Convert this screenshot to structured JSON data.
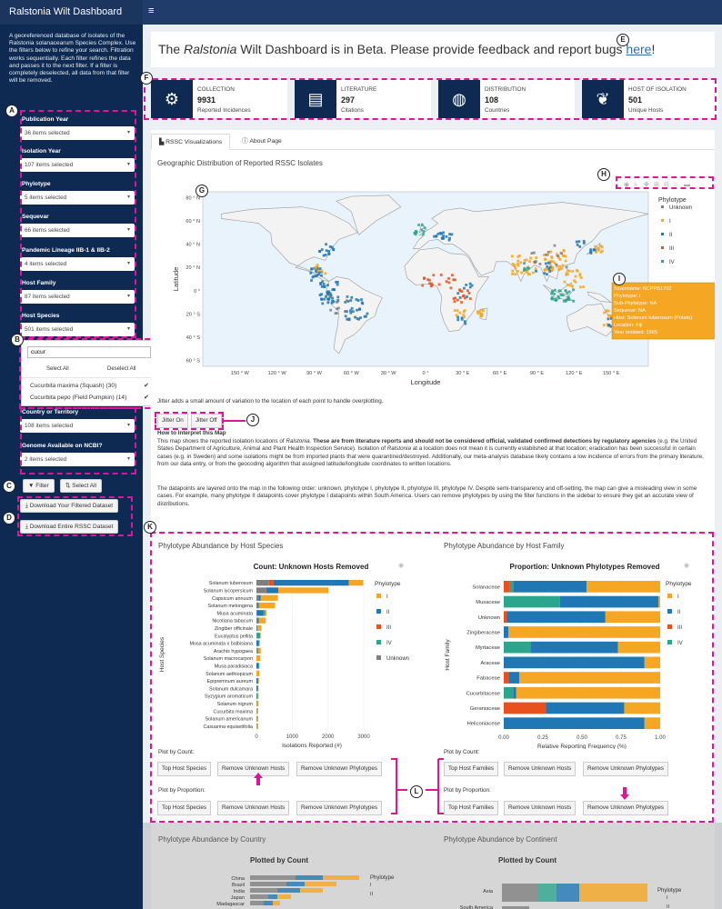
{
  "app": {
    "title": "Ralstonia Wilt Dashboard",
    "menu_glyph": "≡"
  },
  "sidebar": {
    "description": "A georeferenced database of isolates of the Ralstonia solanacearum Species Complex. Use the filters below to refine your search. Filtration works sequentially. Each filter refines the data and passes it to the next filter. If a filter is completely deselected, all data from that filter will be removed.",
    "filters": [
      {
        "label": "Publication Year",
        "value": "36 items selected"
      },
      {
        "label": "Isolation Year",
        "value": "107 items selected"
      },
      {
        "label": "Phylotype",
        "value": "5 items selected"
      },
      {
        "label": "Sequevar",
        "value": "66 items selected"
      },
      {
        "label": "Pandemic Lineage IIB-1 & IIB-2",
        "value": "4 items selected"
      },
      {
        "label": "Host Family",
        "value": "87 items selected"
      },
      {
        "label": "Host Species",
        "value": "501 items selected"
      },
      {
        "label": "Country or Territory",
        "value": "108 items selected"
      },
      {
        "label": "Genome Available on NCBI?",
        "value": "2 items selected"
      }
    ],
    "dropdown": {
      "search_value": "cucur",
      "select_all": "Select All",
      "deselect_all": "Deselect All",
      "options": [
        {
          "label": "Cucurbita maxima (Squash) (30)",
          "checked": "✔"
        },
        {
          "label": "Cucurbita pepo (Field Pumpkin) (14)",
          "checked": "✔"
        }
      ]
    },
    "filter_button": "Filter",
    "select_all_button": "Select All",
    "download_filtered": "Download Your Filtered Dataset",
    "download_entire": "Download Entire RSSC Dataset"
  },
  "annotations": {
    "A": "A",
    "B": "B",
    "C": "C",
    "D": "D",
    "E": "E",
    "F": "F",
    "G": "G",
    "H": "H",
    "I": "I",
    "J": "J",
    "K": "K",
    "L": "L"
  },
  "beta": {
    "prefix": "The ",
    "italic": "Ralstonia",
    "middle": " Wilt Dashboard is in Beta. Please provide feedback and report bugs ",
    "link": "here",
    "suffix": "!"
  },
  "value_boxes": [
    {
      "label": "COLLECTION",
      "value": "9931",
      "sub": "Reported Incidences",
      "icon": "gears-icon",
      "glyph": "⚙"
    },
    {
      "label": "LITERATURE",
      "value": "297",
      "sub": "Citations",
      "icon": "newspaper-icon",
      "glyph": "▤"
    },
    {
      "label": "DISTRIBUTION",
      "value": "108",
      "sub": "Countries",
      "icon": "globe-icon",
      "glyph": "◍"
    },
    {
      "label": "HOST OF ISOLATION",
      "value": "501",
      "sub": "Unique Hosts",
      "icon": "seedling-icon",
      "glyph": "❦"
    }
  ],
  "tabs": [
    {
      "label": "RSSC Visualizations",
      "icon": "chart-icon"
    },
    {
      "label": "About Page",
      "icon": "info-icon"
    }
  ],
  "map": {
    "title": "Geographic Distribution of Reported RSSC Isolates",
    "xlabel": "Longitude",
    "ylabel": "Latitude",
    "lat_ticks": [
      "80 ° N",
      "60 ° N",
      "40 ° N",
      "20 ° N",
      "0 °",
      "20 ° S",
      "40 ° S",
      "60 ° S"
    ],
    "lon_ticks": [
      "150 ° W",
      "120 ° W",
      "90 ° W",
      "60 ° W",
      "30 ° W",
      "0 °",
      "30 ° E",
      "60 ° E",
      "90 ° E",
      "120 ° E",
      "150 ° E"
    ],
    "legend_title": "Phylotype",
    "legend": [
      {
        "name": "Unknown",
        "color": "#7f7f7f"
      },
      {
        "name": "I",
        "color": "#f5a623"
      },
      {
        "name": "II",
        "color": "#1f77b4"
      },
      {
        "name": "III",
        "color": "#e8501e"
      },
      {
        "name": "IV",
        "color": "#2ca58d"
      }
    ],
    "tooltip": [
      "Strainname: NCPPB1702",
      "Phylotype: I",
      "Sub-Phylotype: NA",
      "Sequevar: NA",
      "Host: Solanum tuberosum (Potato)",
      "Location: Fiji",
      "Year Isolated: 1965"
    ],
    "toolbar": [
      "camera-icon",
      "zoom-icon",
      "pan-icon",
      "zoom-in-icon",
      "zoom-out-icon",
      "autoscale-icon",
      "plotly-logo"
    ]
  },
  "jitter": {
    "note": "Jitter adds a small amount of variation to the location of each point to handle overplotting.",
    "on": "Jitter On",
    "off": "Jitter Off"
  },
  "interpret": {
    "heading": "How to Interpret this Map",
    "p1_a": "This map shows the reported isolation locations of ",
    "p1_i": "Ralstonia",
    "p1_b": ". ",
    "p1_bold": "These are from literature reports and should not be considered official, validated confirmed detections by regulatory agencies",
    "p1_c": " (e.g. the United States Department of Agriculture, Animal and Plant Health Inspection Service). Isolation of ",
    "p1_i2": "Ralstonia",
    "p1_d": " at a location does not mean it is currently established at that location; eradication has been successful in certain cases (e.g. in Sweden) and some isolations might be from imported plants that were quarantined/destroyed. Additionally, our meta-analysis database likely contains a low incidence of errors from the primary literature, from our data entry, or from the geocoding algorithm that assigned latitude/longitude coordinates to written locations.",
    "p2": "The datapoints are layered onto the map in the following order: unknown, phylotype I, phylotype II, phylotype III, phylotype IV. Despite semi-transparency and off-setting, the map can give a misleading view in some cases. For example, many phylotype II datapoints cover phylotype I datapoints within South America. Users can remove phylotypes by using the filter functions in the sidebar to ensure they get an accurate view of distributions."
  },
  "host_species": {
    "section_title": "Phylotype Abundance by Host Species",
    "chart_title": "Count: Unknown Hosts Removed",
    "xlabel": "Isolations Reported (#)",
    "ylabel": "Host Species",
    "x_ticks": [
      "0",
      "1000",
      "2000",
      "3000"
    ],
    "plot_by_count": "Plot by Count:",
    "plot_by_proportion": "Plot by Proportion:",
    "buttons": [
      "Top Host Species",
      "Remove Unknown Hosts",
      "Remove Unknown Phylotypes"
    ]
  },
  "host_family": {
    "section_title": "Phylotype Abundance by Host Family",
    "chart_title": "Proportion: Unknown Phylotypes Removed",
    "xlabel": "Relative Reporting Frequency (%)",
    "ylabel": "Host Family",
    "x_ticks": [
      "0.00",
      "0.25",
      "0.50",
      "0.75",
      "1.00"
    ],
    "plot_by_count": "Plot by Count:",
    "plot_by_proportion": "Plot by Proportion:",
    "buttons": [
      "Top Host Families",
      "Remove Unknown Hosts",
      "Remove Unknown Phylotypes"
    ]
  },
  "bottom": {
    "country_title": "Phylotype Abundance by Country",
    "country_chart": "Plotted by Count",
    "country_labels": [
      "China",
      "Brazil",
      "India",
      "Japan",
      "Madagascar"
    ],
    "continent_title": "Phylotype Abundance by Continent",
    "continent_chart": "Plotted by Count",
    "continent_labels": [
      "Asia",
      "South America"
    ]
  },
  "chart_data": [
    {
      "type": "bar",
      "orientation": "horizontal",
      "title": "Count: Unknown Hosts Removed",
      "xlabel": "Isolations Reported (#)",
      "ylabel": "Host Species",
      "xlim": [
        0,
        3100
      ],
      "legend_title": "Phylotype",
      "categories": [
        "Solanum tuberosum",
        "Solanum lycopersicum",
        "Capsicum annuum",
        "Solanum melongena",
        "Musa acuminata",
        "Nicotiana tabacum",
        "Zingiber officinale",
        "Eucalyptus pellita",
        "Musa acuminata x balbisiana",
        "Arachis hypogaea",
        "Solanum macrocarpon",
        "Musa paradisiaca",
        "Solanum aethiopicum",
        "Epipremnum aureum",
        "Solanum dulcamara",
        "Syzygium aromaticum",
        "Solanum nigrum",
        "Cucurbita maxima",
        "Solanum americanum",
        "Casuarina equisetifolia"
      ],
      "series": [
        {
          "name": "Unknown",
          "color": "#7f7f7f",
          "values": [
            350,
            260,
            60,
            30,
            10,
            30,
            10,
            0,
            0,
            10,
            0,
            0,
            0,
            0,
            0,
            0,
            0,
            0,
            0,
            0
          ]
        },
        {
          "name": "III",
          "color": "#e8501e",
          "values": [
            130,
            10,
            0,
            0,
            0,
            0,
            0,
            0,
            0,
            0,
            0,
            0,
            0,
            0,
            0,
            0,
            0,
            0,
            0,
            0
          ]
        },
        {
          "name": "II",
          "color": "#1f77b4",
          "values": [
            2100,
            340,
            60,
            40,
            190,
            40,
            20,
            10,
            60,
            10,
            0,
            60,
            0,
            40,
            40,
            0,
            10,
            10,
            10,
            0
          ]
        },
        {
          "name": "IV",
          "color": "#2ca58d",
          "values": [
            0,
            0,
            0,
            0,
            40,
            0,
            0,
            100,
            20,
            30,
            0,
            20,
            0,
            10,
            0,
            40,
            0,
            0,
            0,
            10
          ]
        },
        {
          "name": "I",
          "color": "#f5a623",
          "values": [
            400,
            1400,
            480,
            450,
            40,
            190,
            110,
            10,
            20,
            70,
            110,
            10,
            80,
            20,
            20,
            20,
            50,
            40,
            40,
            40
          ]
        }
      ]
    },
    {
      "type": "bar",
      "orientation": "horizontal",
      "stacked": "proportion",
      "title": "Proportion: Unknown Phylotypes Removed",
      "xlabel": "Relative Reporting Frequency (%)",
      "ylabel": "Host Family",
      "xlim": [
        0,
        1
      ],
      "legend_title": "Phylotype",
      "categories": [
        "Solanaceae",
        "Musaceae",
        "Unknown",
        "Zingiberaceae",
        "Myrtaceae",
        "Araceae",
        "Fabaceae",
        "Cucurbitaceae",
        "Geraniaceae",
        "Heliconiaceae"
      ],
      "series": [
        {
          "name": "III",
          "color": "#e8501e",
          "values": [
            0.04,
            0.0,
            0.02,
            0.0,
            0.0,
            0.0,
            0.03,
            0.0,
            0.27,
            0.0
          ]
        },
        {
          "name": "IV",
          "color": "#2ca58d",
          "values": [
            0.02,
            0.36,
            0.0,
            0.0,
            0.17,
            0.0,
            0.0,
            0.06,
            0.0,
            0.0
          ]
        },
        {
          "name": "II",
          "color": "#1f77b4",
          "values": [
            0.47,
            0.63,
            0.63,
            0.03,
            0.56,
            0.9,
            0.07,
            0.02,
            0.5,
            0.9
          ]
        },
        {
          "name": "I",
          "color": "#f5a623",
          "values": [
            0.47,
            0.01,
            0.35,
            0.97,
            0.27,
            0.1,
            0.9,
            0.92,
            0.23,
            0.1
          ]
        }
      ]
    }
  ]
}
